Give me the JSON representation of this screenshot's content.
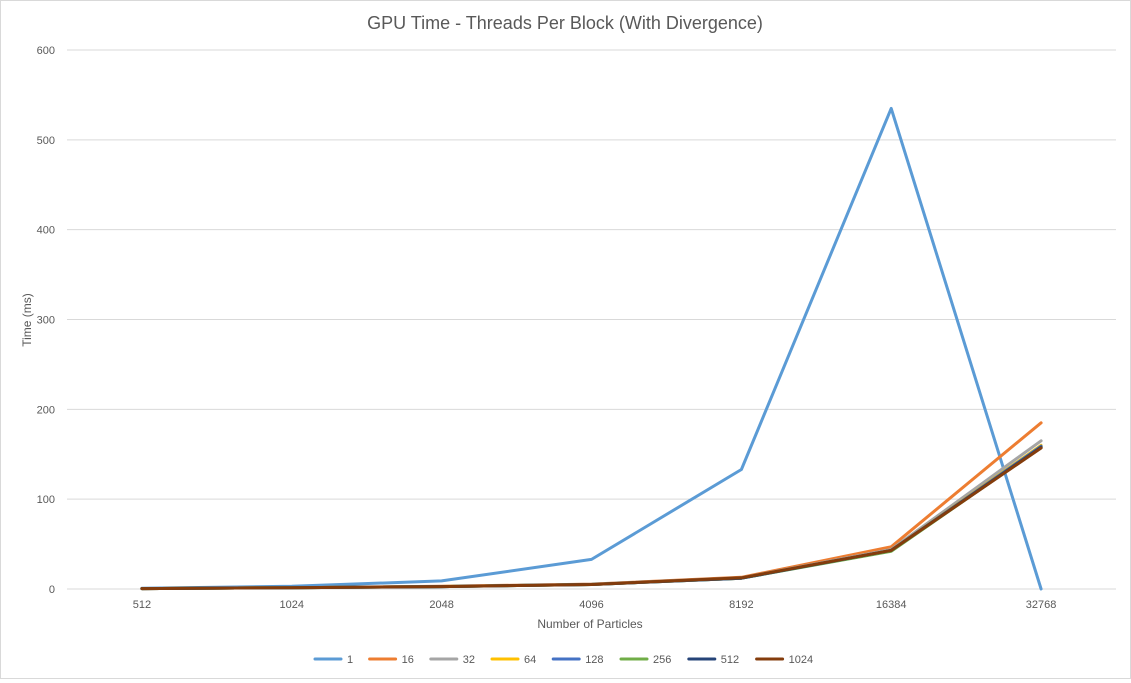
{
  "chart_data": {
    "type": "line",
    "title": "GPU Time - Threads Per Block (With Divergence)",
    "xlabel": "Number of Particles",
    "ylabel": "Time (ms)",
    "categories": [
      "512",
      "1024",
      "2048",
      "4096",
      "8192",
      "16384",
      "32768"
    ],
    "ylim": [
      0,
      600
    ],
    "yticks": [
      0,
      100,
      200,
      300,
      400,
      500,
      600
    ],
    "grid": true,
    "legend_position": "bottom",
    "series": [
      {
        "name": "1",
        "color": "#5b9bd5",
        "values": [
          0.8,
          3,
          9,
          33,
          133,
          535,
          0
        ]
      },
      {
        "name": "16",
        "color": "#ed7d31",
        "values": [
          0.4,
          1.5,
          3,
          5.5,
          13,
          47,
          185
        ]
      },
      {
        "name": "32",
        "color": "#a5a5a5",
        "values": [
          0.4,
          1.4,
          2.8,
          5.2,
          12.5,
          44,
          165
        ]
      },
      {
        "name": "64",
        "color": "#ffc000",
        "values": [
          0.4,
          1.4,
          2.8,
          5,
          12,
          43,
          160
        ]
      },
      {
        "name": "128",
        "color": "#4472c4",
        "values": [
          0.4,
          1.4,
          2.7,
          5,
          12,
          43,
          159
        ]
      },
      {
        "name": "256",
        "color": "#70ad47",
        "values": [
          0.4,
          1.4,
          2.7,
          5,
          12,
          42,
          158
        ]
      },
      {
        "name": "512",
        "color": "#264478",
        "values": [
          0.4,
          1.4,
          2.7,
          5,
          12,
          43,
          158
        ]
      },
      {
        "name": "1024",
        "color": "#843c0c",
        "values": [
          0.4,
          1.4,
          2.7,
          5,
          12.5,
          43,
          157
        ]
      }
    ]
  }
}
